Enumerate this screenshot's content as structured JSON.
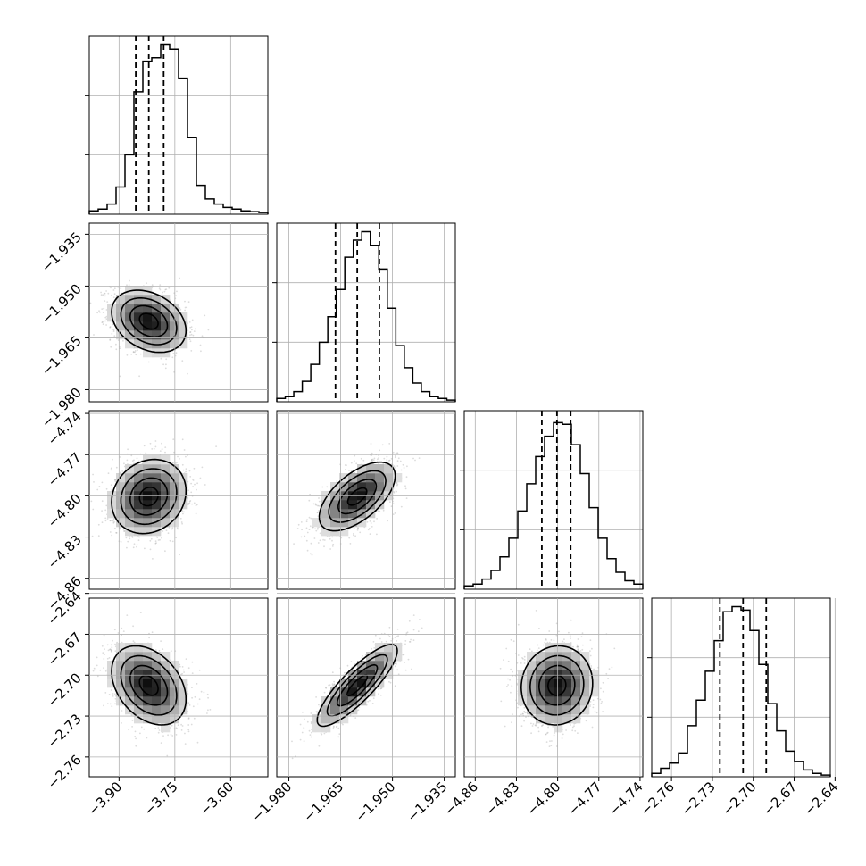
{
  "chart_data": {
    "type": "corner",
    "grid": true,
    "colors": {
      "line": "#000000",
      "sample": "#9a9a9a",
      "grid": "#b0b0b0"
    },
    "parameters": [
      {
        "range": [
          -3.98,
          -3.5
        ],
        "ticks": [
          -3.9,
          -3.75,
          -3.6
        ],
        "tick_labels": [
          "−3.90",
          "−3.75",
          "−3.60"
        ],
        "quantiles": [
          -3.855,
          -3.82,
          -3.78
        ]
      },
      {
        "range": [
          -1.9835,
          -1.9318
        ],
        "ticks": [
          -1.98,
          -1.965,
          -1.95,
          -1.935
        ],
        "tick_labels": [
          "−1.980",
          "−1.965",
          "−1.950",
          "−1.935"
        ],
        "quantiles": [
          -1.9665,
          -1.9602,
          -1.9538
        ]
      },
      {
        "range": [
          -4.868,
          -4.738
        ],
        "ticks": [
          -4.86,
          -4.83,
          -4.8,
          -4.77,
          -4.74
        ],
        "tick_labels": [
          "−4.86",
          "−4.83",
          "−4.80",
          "−4.77",
          "−4.74"
        ],
        "quantiles": [
          -4.8115,
          -4.8005,
          -4.7905
        ]
      },
      {
        "range": [
          -2.7745,
          -2.6435
        ],
        "ticks": [
          -2.76,
          -2.73,
          -2.7,
          -2.67,
          -2.64
        ],
        "tick_labels": [
          "−2.76",
          "−2.73",
          "−2.70",
          "−2.67",
          "−2.64"
        ],
        "quantiles": [
          -2.7245,
          -2.7075,
          -2.6905
        ]
      }
    ],
    "histograms": [
      [
        0.02,
        0.03,
        0.06,
        0.16,
        0.35,
        0.72,
        0.9,
        0.92,
        1.0,
        0.97,
        0.8,
        0.45,
        0.17,
        0.09,
        0.06,
        0.04,
        0.03,
        0.02,
        0.015,
        0.01
      ],
      [
        0.02,
        0.03,
        0.06,
        0.12,
        0.22,
        0.35,
        0.5,
        0.66,
        0.85,
        0.95,
        1.0,
        0.92,
        0.78,
        0.55,
        0.33,
        0.2,
        0.11,
        0.06,
        0.03,
        0.02,
        0.01
      ],
      [
        0.02,
        0.03,
        0.06,
        0.11,
        0.19,
        0.3,
        0.46,
        0.62,
        0.78,
        0.9,
        0.98,
        0.97,
        0.85,
        0.68,
        0.48,
        0.3,
        0.18,
        0.1,
        0.05,
        0.03
      ],
      [
        0.02,
        0.05,
        0.08,
        0.14,
        0.3,
        0.45,
        0.62,
        0.8,
        0.97,
        1.0,
        0.98,
        0.86,
        0.66,
        0.43,
        0.27,
        0.15,
        0.09,
        0.04,
        0.02,
        0.01
      ]
    ],
    "density": [
      {
        "x": 1,
        "y": 0,
        "mean": [
          -3.82,
          -1.9602
        ],
        "sd": [
          0.05,
          0.0045
        ],
        "rho": -0.3
      },
      {
        "x": 2,
        "y": 0,
        "mean": [
          -3.82,
          -4.8005
        ],
        "sd": [
          0.05,
          0.0135
        ],
        "rho": 0.15
      },
      {
        "x": 2,
        "y": 1,
        "mean": [
          -1.9602,
          -4.8005
        ],
        "sd": [
          0.0055,
          0.0125
        ],
        "rho": 0.6
      },
      {
        "x": 3,
        "y": 0,
        "mean": [
          -3.82,
          -2.7075
        ],
        "sd": [
          0.05,
          0.0145
        ],
        "rho": -0.35
      },
      {
        "x": 3,
        "y": 1,
        "mean": [
          -1.9602,
          -2.7075
        ],
        "sd": [
          0.0058,
          0.015
        ],
        "rho": 0.85
      },
      {
        "x": 3,
        "y": 2,
        "mean": [
          -4.8005,
          -2.7075
        ],
        "sd": [
          0.013,
          0.0145
        ],
        "rho": 0.05
      }
    ]
  }
}
